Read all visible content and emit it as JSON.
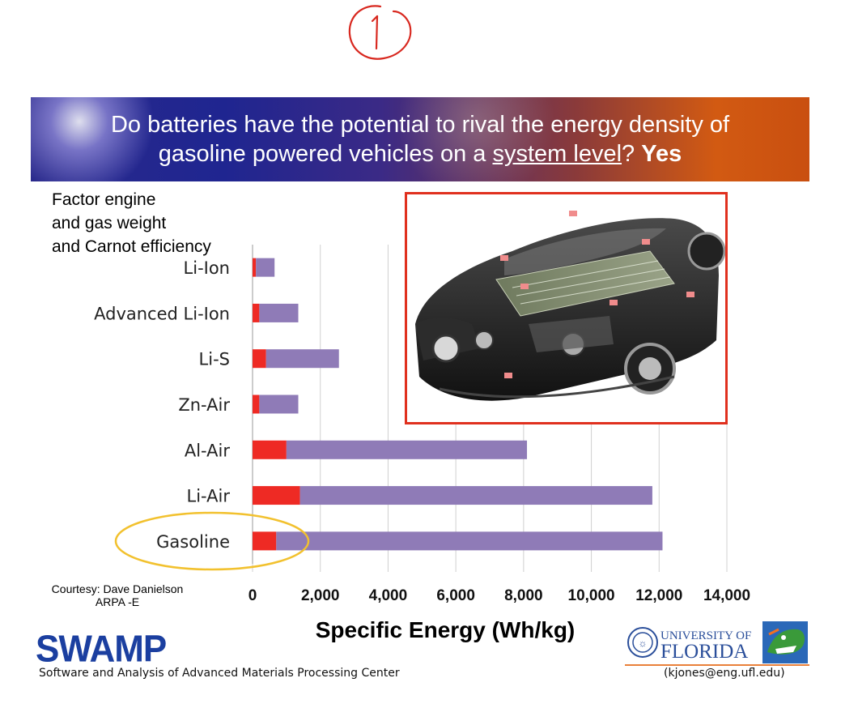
{
  "banner": {
    "line1": "Do batteries have the potential to rival the energy density of",
    "line2_pre": "gasoline powered vehicles on a ",
    "line2_underlined": "system level",
    "line2_mid": "? ",
    "line2_bold": "Yes"
  },
  "note": {
    "line1": "Factor engine",
    "line2": "and gas weight",
    "line3": "and Carnot efficiency"
  },
  "courtesy": {
    "line1": "Courtesy: Dave Danielson",
    "line2": "ARPA -E"
  },
  "footer": {
    "swamp_logo": "SWAMP",
    "swamp_subtitle": "Software and Analysis of Advanced Materials Processing Center",
    "uf_logo_line1": "UNIVERSITY OF",
    "uf_logo_line2": "FLORIDA",
    "contact": "(kjones@eng.ufl.edu)"
  },
  "colors": {
    "system_level": "#ee2a24",
    "theoretical": "#8f7bb7",
    "highlight": "#f2c12e",
    "frame": "#e0301e"
  },
  "chart_data": {
    "type": "bar",
    "orientation": "horizontal",
    "stacked": true,
    "categories": [
      "Li-Ion",
      "Advanced Li-Ion",
      "Li-S",
      "Zn-Air",
      "Al-Air",
      "Li-Air",
      "Gasoline"
    ],
    "series": [
      {
        "values": [
          100,
          200,
          400,
          200,
          1000,
          1400,
          700
        ]
      },
      {
        "values": [
          550,
          1150,
          2150,
          1150,
          7100,
          10400,
          11400
        ]
      }
    ],
    "xlabel": "Specific Energy  (Wh/kg)",
    "xlim": [
      0,
      14000
    ],
    "xticks": [
      "0",
      "2,000",
      "4,000",
      "6,000",
      "8,000",
      "10,000",
      "12,000",
      "14,000"
    ],
    "grid": true,
    "legend": "none",
    "highlighted_category": "Gasoline"
  }
}
